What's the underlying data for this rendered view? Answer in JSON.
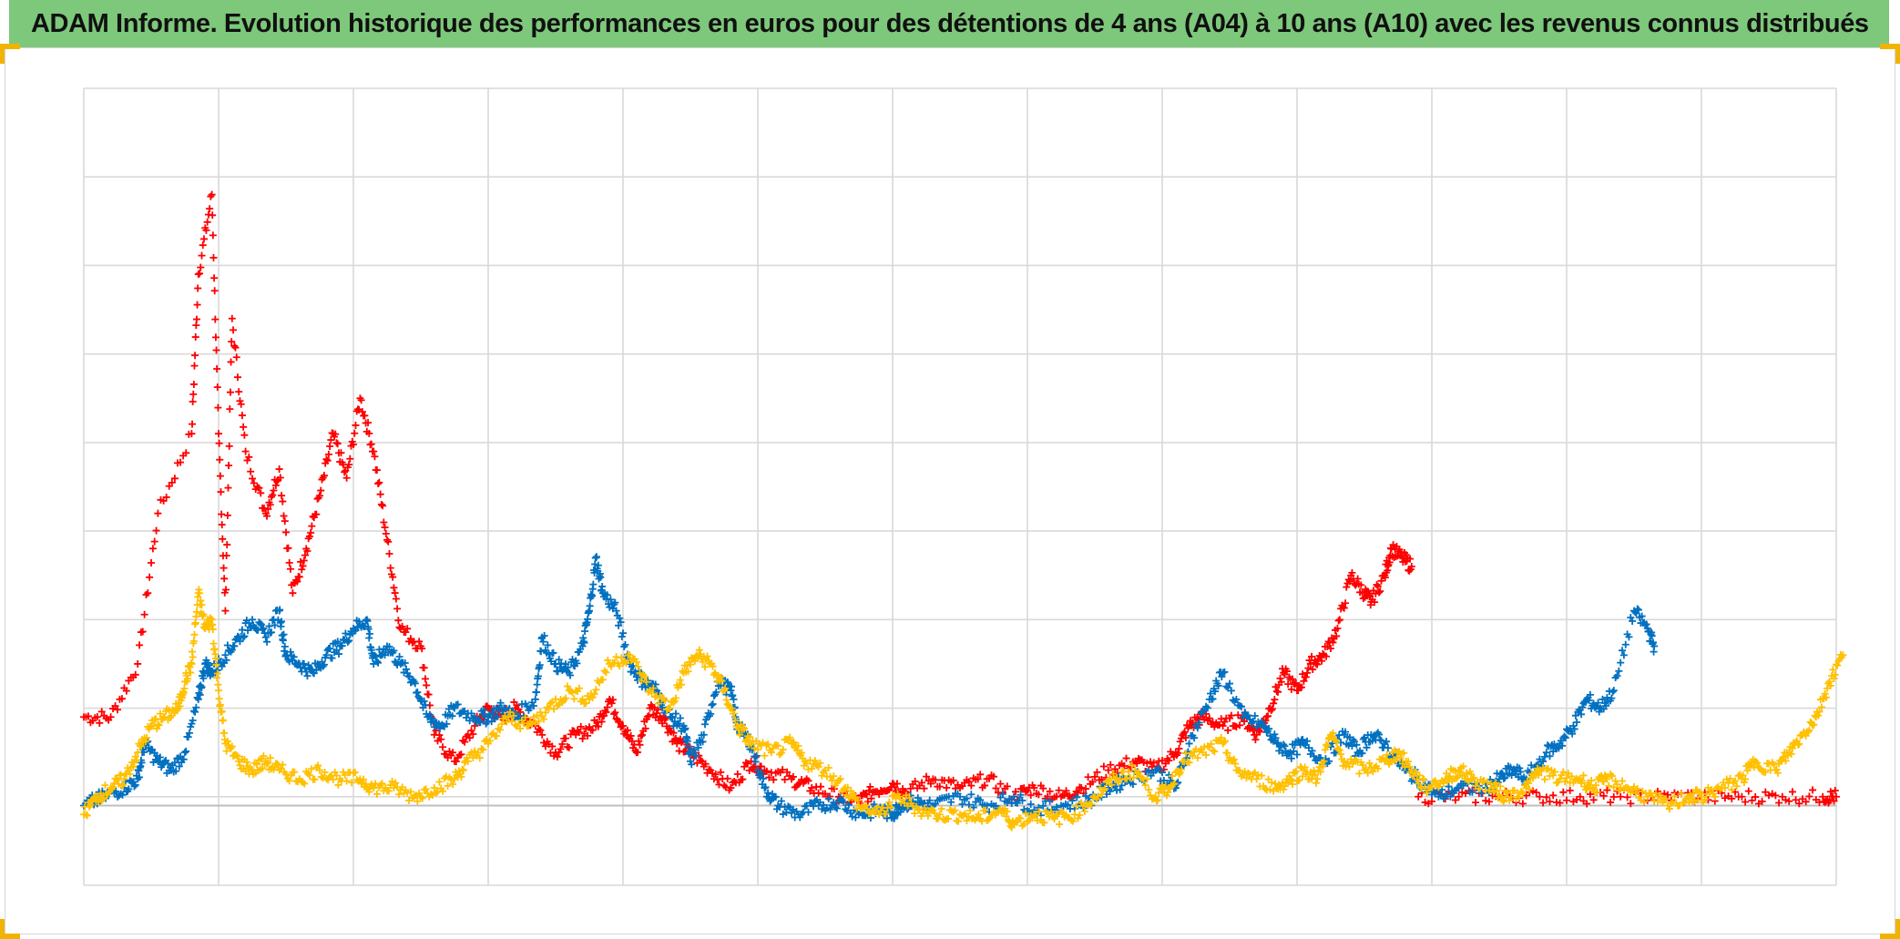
{
  "title": "ADAM Informe. Evolution historique des performances en euros pour des détentions de 4 ans (A04) à 10 ans (A10) avec les revenus connus distribués",
  "colors": {
    "title_background": "#7dc87a",
    "accent": "#f0b400",
    "grid": "#d9d9d9",
    "zero_line": "#bfbfbf"
  },
  "chart_data": {
    "type": "scatter",
    "marker": "cross",
    "title": "ADAM Informe. Evolution historique des performances en euros pour des détentions de 4 ans (A04) à 10 ans (A10) avec les revenus connus distribués",
    "xlabel": "",
    "ylabel": "",
    "xlim": [
      0,
      13
    ],
    "ylim": [
      -0.9,
      8.1
    ],
    "grid": true,
    "legend": "none",
    "x_grid_lines": 13,
    "y_grid_lines": 9,
    "series": [
      {
        "color": "#ff0000",
        "points": [
          [
            0.0,
            1.0
          ],
          [
            0.2,
            1.0
          ],
          [
            0.4,
            1.6
          ],
          [
            0.55,
            3.3
          ],
          [
            0.8,
            4.2
          ],
          [
            0.85,
            6.0
          ],
          [
            0.95,
            6.9
          ],
          [
            1.0,
            4.2
          ],
          [
            1.05,
            2.2
          ],
          [
            1.1,
            5.5
          ],
          [
            1.2,
            4.0
          ],
          [
            1.35,
            3.3
          ],
          [
            1.45,
            3.8
          ],
          [
            1.55,
            2.4
          ],
          [
            1.65,
            2.9
          ],
          [
            1.75,
            3.5
          ],
          [
            1.85,
            4.2
          ],
          [
            1.95,
            3.7
          ],
          [
            2.05,
            4.6
          ],
          [
            2.15,
            4.0
          ],
          [
            2.25,
            3.0
          ],
          [
            2.35,
            2.0
          ],
          [
            2.5,
            1.8
          ],
          [
            2.6,
            0.8
          ],
          [
            2.75,
            0.5
          ],
          [
            2.9,
            0.9
          ],
          [
            3.0,
            1.1
          ],
          [
            3.1,
            1.0
          ],
          [
            3.2,
            1.1
          ],
          [
            3.35,
            0.9
          ],
          [
            3.5,
            0.6
          ],
          [
            3.65,
            0.8
          ],
          [
            3.8,
            0.9
          ],
          [
            3.9,
            1.2
          ],
          [
            4.0,
            0.9
          ],
          [
            4.1,
            0.6
          ],
          [
            4.2,
            1.1
          ],
          [
            4.3,
            1.0
          ],
          [
            4.4,
            0.7
          ],
          [
            4.5,
            0.6
          ],
          [
            4.65,
            0.4
          ],
          [
            4.8,
            0.2
          ],
          [
            4.95,
            0.5
          ],
          [
            5.05,
            0.4
          ],
          [
            5.25,
            0.3
          ],
          [
            5.4,
            0.2
          ],
          [
            5.6,
            0.1
          ],
          [
            5.75,
            0.05
          ],
          [
            5.85,
            0.15
          ],
          [
            6.0,
            0.25
          ],
          [
            6.1,
            0.15
          ],
          [
            6.3,
            0.3
          ],
          [
            6.5,
            0.2
          ],
          [
            6.7,
            0.3
          ],
          [
            6.9,
            0.1
          ],
          [
            7.05,
            0.2
          ],
          [
            7.25,
            0.1
          ],
          [
            7.4,
            0.2
          ],
          [
            7.6,
            0.4
          ],
          [
            7.8,
            0.5
          ],
          [
            7.95,
            0.4
          ],
          [
            8.1,
            0.6
          ],
          [
            8.2,
            0.9
          ],
          [
            8.3,
            1.0
          ],
          [
            8.45,
            0.9
          ],
          [
            8.6,
            1.0
          ],
          [
            8.7,
            0.8
          ],
          [
            8.8,
            1.1
          ],
          [
            8.9,
            1.5
          ],
          [
            9.0,
            1.3
          ],
          [
            9.1,
            1.6
          ],
          [
            9.2,
            1.7
          ],
          [
            9.3,
            2.0
          ],
          [
            9.4,
            2.6
          ],
          [
            9.5,
            2.4
          ],
          [
            9.55,
            2.3
          ],
          [
            9.65,
            2.6
          ],
          [
            9.7,
            2.9
          ],
          [
            9.78,
            2.8
          ],
          [
            9.85,
            2.7
          ]
        ]
      },
      {
        "color": "#ff0000",
        "points": [
          [
            9.9,
            0.1
          ],
          [
            10.2,
            0.1
          ],
          [
            10.5,
            0.1
          ],
          [
            10.8,
            0.1
          ],
          [
            11.1,
            0.1
          ],
          [
            11.4,
            0.1
          ],
          [
            11.7,
            0.1
          ],
          [
            12.0,
            0.1
          ],
          [
            12.3,
            0.1
          ],
          [
            12.6,
            0.1
          ],
          [
            12.9,
            0.1
          ],
          [
            13.0,
            0.1
          ]
        ]
      },
      {
        "color": "#0070c0",
        "points": [
          [
            0.0,
            0.0
          ],
          [
            0.15,
            0.1
          ],
          [
            0.3,
            0.2
          ],
          [
            0.4,
            0.3
          ],
          [
            0.45,
            0.7
          ],
          [
            0.55,
            0.5
          ],
          [
            0.65,
            0.4
          ],
          [
            0.75,
            0.6
          ],
          [
            0.85,
            1.2
          ],
          [
            0.9,
            1.6
          ],
          [
            0.95,
            1.5
          ],
          [
            1.05,
            1.7
          ],
          [
            1.15,
            1.9
          ],
          [
            1.25,
            2.1
          ],
          [
            1.35,
            1.9
          ],
          [
            1.45,
            2.2
          ],
          [
            1.5,
            1.7
          ],
          [
            1.6,
            1.6
          ],
          [
            1.7,
            1.5
          ],
          [
            1.8,
            1.7
          ],
          [
            1.9,
            1.8
          ],
          [
            2.0,
            2.0
          ],
          [
            2.1,
            2.1
          ],
          [
            2.15,
            1.6
          ],
          [
            2.25,
            1.8
          ],
          [
            2.35,
            1.6
          ],
          [
            2.45,
            1.4
          ],
          [
            2.55,
            1.0
          ],
          [
            2.65,
            0.9
          ],
          [
            2.75,
            1.1
          ],
          [
            2.9,
            1.0
          ],
          [
            3.0,
            1.0
          ],
          [
            3.1,
            1.1
          ],
          [
            3.2,
            1.0
          ],
          [
            3.35,
            1.2
          ],
          [
            3.4,
            1.9
          ],
          [
            3.5,
            1.6
          ],
          [
            3.6,
            1.5
          ],
          [
            3.7,
            1.8
          ],
          [
            3.75,
            2.2
          ],
          [
            3.8,
            2.8
          ],
          [
            3.85,
            2.4
          ],
          [
            3.95,
            2.2
          ],
          [
            4.05,
            1.6
          ],
          [
            4.15,
            1.4
          ],
          [
            4.25,
            1.3
          ],
          [
            4.35,
            1.0
          ],
          [
            4.45,
            0.9
          ],
          [
            4.5,
            0.5
          ],
          [
            4.6,
            0.8
          ],
          [
            4.7,
            1.4
          ],
          [
            4.8,
            1.3
          ],
          [
            4.85,
            0.9
          ],
          [
            4.95,
            0.7
          ],
          [
            5.05,
            0.2
          ],
          [
            5.15,
            0.0
          ],
          [
            5.3,
            -0.1
          ],
          [
            5.45,
            0.0
          ],
          [
            5.6,
            0.05
          ],
          [
            5.75,
            -0.1
          ],
          [
            5.9,
            -0.05
          ],
          [
            6.0,
            -0.1
          ],
          [
            6.05,
            0.0
          ],
          [
            6.15,
            0.05
          ],
          [
            6.3,
            0.0
          ],
          [
            6.5,
            0.1
          ],
          [
            6.7,
            0.0
          ],
          [
            6.9,
            0.1
          ],
          [
            7.05,
            -0.05
          ],
          [
            7.25,
            0.0
          ],
          [
            7.45,
            0.05
          ],
          [
            7.6,
            0.2
          ],
          [
            7.75,
            0.3
          ],
          [
            7.95,
            0.4
          ],
          [
            8.1,
            0.2
          ],
          [
            8.2,
            0.7
          ],
          [
            8.35,
            1.2
          ],
          [
            8.45,
            1.5
          ],
          [
            8.6,
            1.0
          ],
          [
            8.75,
            0.9
          ],
          [
            8.85,
            0.7
          ],
          [
            8.95,
            0.6
          ],
          [
            9.05,
            0.7
          ],
          [
            9.2,
            0.5
          ],
          [
            9.35,
            0.8
          ],
          [
            9.45,
            0.6
          ],
          [
            9.55,
            0.8
          ],
          [
            9.65,
            0.7
          ],
          [
            9.8,
            0.4
          ],
          [
            9.9,
            0.3
          ],
          [
            10.05,
            0.1
          ],
          [
            10.2,
            0.2
          ],
          [
            10.4,
            0.2
          ],
          [
            10.5,
            0.3
          ],
          [
            10.6,
            0.4
          ],
          [
            10.7,
            0.3
          ],
          [
            10.85,
            0.6
          ],
          [
            10.95,
            0.7
          ],
          [
            11.05,
            0.9
          ],
          [
            11.15,
            1.2
          ],
          [
            11.25,
            1.1
          ],
          [
            11.35,
            1.3
          ],
          [
            11.5,
            2.2
          ],
          [
            11.6,
            2.0
          ],
          [
            11.65,
            1.8
          ]
        ]
      },
      {
        "color": "#ffc000",
        "points": [
          [
            0.0,
            -0.1
          ],
          [
            0.1,
            0.1
          ],
          [
            0.2,
            0.2
          ],
          [
            0.3,
            0.3
          ],
          [
            0.4,
            0.6
          ],
          [
            0.5,
            0.9
          ],
          [
            0.6,
            1.0
          ],
          [
            0.7,
            1.1
          ],
          [
            0.75,
            1.4
          ],
          [
            0.8,
            1.6
          ],
          [
            0.85,
            2.4
          ],
          [
            0.9,
            2.0
          ],
          [
            0.95,
            2.1
          ],
          [
            1.0,
            1.3
          ],
          [
            1.05,
            0.7
          ],
          [
            1.15,
            0.5
          ],
          [
            1.25,
            0.4
          ],
          [
            1.35,
            0.5
          ],
          [
            1.45,
            0.4
          ],
          [
            1.6,
            0.3
          ],
          [
            1.75,
            0.4
          ],
          [
            1.9,
            0.3
          ],
          [
            2.05,
            0.3
          ],
          [
            2.15,
            0.2
          ],
          [
            2.3,
            0.2
          ],
          [
            2.45,
            0.1
          ],
          [
            2.6,
            0.2
          ],
          [
            2.75,
            0.3
          ],
          [
            2.85,
            0.5
          ],
          [
            3.0,
            0.7
          ],
          [
            3.15,
            1.0
          ],
          [
            3.3,
            0.9
          ],
          [
            3.45,
            1.1
          ],
          [
            3.6,
            1.3
          ],
          [
            3.75,
            1.2
          ],
          [
            3.9,
            1.6
          ],
          [
            4.05,
            1.7
          ],
          [
            4.2,
            1.3
          ],
          [
            4.35,
            1.1
          ],
          [
            4.45,
            1.5
          ],
          [
            4.55,
            1.7
          ],
          [
            4.65,
            1.6
          ],
          [
            4.75,
            1.3
          ],
          [
            4.85,
            0.9
          ],
          [
            4.95,
            0.7
          ],
          [
            5.1,
            0.6
          ],
          [
            5.25,
            0.7
          ],
          [
            5.35,
            0.5
          ],
          [
            5.5,
            0.4
          ],
          [
            5.65,
            0.2
          ],
          [
            5.75,
            0.0
          ],
          [
            5.9,
            -0.1
          ],
          [
            6.05,
            0.1
          ],
          [
            6.2,
            -0.05
          ],
          [
            6.35,
            -0.1
          ],
          [
            6.5,
            -0.1
          ],
          [
            6.65,
            -0.15
          ],
          [
            6.8,
            -0.05
          ],
          [
            6.9,
            -0.2
          ],
          [
            7.05,
            -0.1
          ],
          [
            7.2,
            -0.15
          ],
          [
            7.35,
            -0.1
          ],
          [
            7.5,
            0.1
          ],
          [
            7.65,
            0.3
          ],
          [
            7.8,
            0.4
          ],
          [
            7.95,
            0.1
          ],
          [
            8.05,
            0.2
          ],
          [
            8.15,
            0.5
          ],
          [
            8.3,
            0.6
          ],
          [
            8.45,
            0.7
          ],
          [
            8.55,
            0.4
          ],
          [
            8.7,
            0.3
          ],
          [
            8.85,
            0.2
          ],
          [
            8.95,
            0.3
          ],
          [
            9.05,
            0.4
          ],
          [
            9.15,
            0.3
          ],
          [
            9.25,
            0.8
          ],
          [
            9.35,
            0.5
          ],
          [
            9.5,
            0.4
          ],
          [
            9.65,
            0.5
          ],
          [
            9.75,
            0.6
          ],
          [
            9.85,
            0.4
          ],
          [
            9.95,
            0.2
          ],
          [
            10.1,
            0.3
          ],
          [
            10.2,
            0.4
          ],
          [
            10.3,
            0.3
          ],
          [
            10.45,
            0.2
          ],
          [
            10.55,
            0.1
          ],
          [
            10.7,
            0.2
          ],
          [
            10.8,
            0.4
          ],
          [
            10.95,
            0.3
          ],
          [
            11.1,
            0.3
          ],
          [
            11.2,
            0.2
          ],
          [
            11.3,
            0.3
          ],
          [
            11.45,
            0.2
          ],
          [
            11.6,
            0.1
          ],
          [
            11.75,
            0.0
          ],
          [
            11.9,
            0.1
          ],
          [
            12.0,
            0.1
          ],
          [
            12.15,
            0.2
          ],
          [
            12.3,
            0.3
          ],
          [
            12.4,
            0.5
          ],
          [
            12.55,
            0.4
          ],
          [
            12.65,
            0.6
          ],
          [
            12.75,
            0.8
          ],
          [
            12.85,
            1.0
          ],
          [
            12.95,
            1.4
          ],
          [
            13.05,
            1.7
          ]
        ]
      }
    ]
  }
}
